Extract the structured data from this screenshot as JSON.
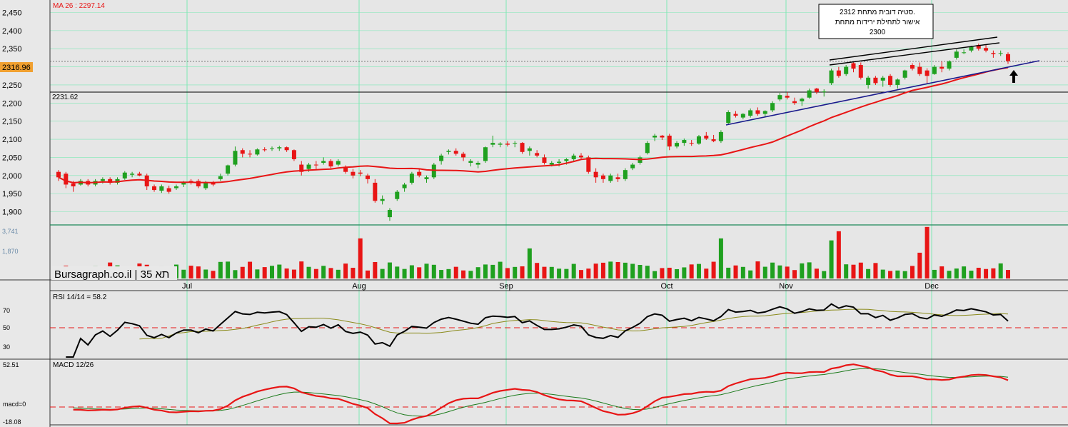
{
  "colors": {
    "background": "#e8e8e8",
    "grid": "#7de8b4",
    "up": "#1fa01f",
    "down": "#e81515",
    "ma": "#e81515",
    "rsi": "#000000",
    "rsi_signal": "#8a8a1a",
    "macd": "#e81515",
    "macd_signal": "#1a7a1a",
    "trendline": "#1a1a8c",
    "price_badge": "#f0a030"
  },
  "price_panel": {
    "ma_label": "MA 26 : 2297.14",
    "last_price": "2316.96",
    "level_label": "2231.62",
    "yticks": [
      "2,450",
      "2,400",
      "2,350",
      "2,300",
      "2,250",
      "2,200",
      "2,150",
      "2,100",
      "2,050",
      "2,000",
      "1,950",
      "1,900"
    ],
    "annotation_lines": [
      "סטיה דובית מתחת 2312.",
      "אישור לתחילת ירידות מתחת",
      "2300"
    ]
  },
  "volume_panel": {
    "yticks": [
      "3,741",
      "1,870"
    ],
    "watermark": "Bursagraph.co.il | תא 35"
  },
  "x_labels": [
    "Jul",
    "Aug",
    "Sep",
    "Oct",
    "Nov",
    "Dec"
  ],
  "rsi_panel": {
    "label": "RSI 14/14 = 58.2",
    "yticks": [
      "70",
      "50",
      "30"
    ]
  },
  "macd_panel": {
    "label": "MACD 12/26",
    "yticks": [
      "52.51",
      "macd=0",
      "-18.08"
    ]
  },
  "chart_data": {
    "type": "candlestick",
    "instrument": "תא 35",
    "months": [
      "Jul",
      "Aug",
      "Sep",
      "Oct",
      "Nov",
      "Dec"
    ],
    "price": {
      "ylim": [
        1875,
        2460
      ],
      "ohlc": [
        [
          2010,
          2015,
          1985,
          1995
        ],
        [
          2005,
          2010,
          1965,
          1975
        ],
        [
          1978,
          1985,
          1955,
          1970
        ],
        [
          1975,
          1990,
          1972,
          1985
        ],
        [
          1985,
          1990,
          1970,
          1975
        ],
        [
          1975,
          1990,
          1970,
          1985
        ],
        [
          1985,
          1995,
          1978,
          1990
        ],
        [
          1990,
          1995,
          1975,
          1980
        ],
        [
          1980,
          1995,
          1975,
          1990
        ],
        [
          1992,
          2012,
          1988,
          2008
        ],
        [
          2002,
          2010,
          1995,
          2005
        ],
        [
          2005,
          2010,
          1998,
          2000
        ],
        [
          2000,
          2005,
          1960,
          1970
        ],
        [
          1970,
          1975,
          1955,
          1960
        ],
        [
          1958,
          1975,
          1952,
          1970
        ],
        [
          1965,
          1972,
          1950,
          1955
        ],
        [
          1965,
          1975,
          1960,
          1970
        ],
        [
          1975,
          1985,
          1968,
          1980
        ],
        [
          1985,
          1990,
          1975,
          1980
        ],
        [
          1985,
          1990,
          1965,
          1970
        ],
        [
          1965,
          1985,
          1960,
          1982
        ],
        [
          1980,
          1985,
          1970,
          1975
        ],
        [
          1990,
          2005,
          1985,
          1998
        ],
        [
          2005,
          2030,
          2000,
          2028
        ],
        [
          2030,
          2080,
          2025,
          2068
        ],
        [
          2070,
          2075,
          2050,
          2060
        ],
        [
          2060,
          2070,
          2050,
          2058
        ],
        [
          2058,
          2075,
          2055,
          2072
        ],
        [
          2072,
          2078,
          2066,
          2070
        ],
        [
          2073,
          2080,
          2068,
          2075
        ],
        [
          2075,
          2082,
          2068,
          2078
        ],
        [
          2078,
          2080,
          2065,
          2070
        ],
        [
          2070,
          2072,
          2040,
          2045
        ],
        [
          2030,
          2040,
          2000,
          2010
        ],
        [
          2018,
          2035,
          2010,
          2030
        ],
        [
          2030,
          2040,
          2015,
          2028
        ],
        [
          2035,
          2050,
          2030,
          2040
        ],
        [
          2040,
          2045,
          2020,
          2025
        ],
        [
          2030,
          2045,
          2025,
          2040
        ],
        [
          2022,
          2028,
          2005,
          2010
        ],
        [
          2010,
          2018,
          1992,
          2000
        ],
        [
          2008,
          2015,
          1998,
          2005
        ],
        [
          2000,
          2005,
          1978,
          1990
        ],
        [
          1980,
          1990,
          1925,
          1930
        ],
        [
          1930,
          1945,
          1920,
          1935
        ],
        [
          1885,
          1910,
          1875,
          1905
        ],
        [
          1935,
          1960,
          1930,
          1955
        ],
        [
          1965,
          1980,
          1955,
          1975
        ],
        [
          1980,
          2010,
          1975,
          2005
        ],
        [
          2010,
          2020,
          1995,
          2000
        ],
        [
          1990,
          2000,
          1980,
          1995
        ],
        [
          1995,
          2035,
          1990,
          2030
        ],
        [
          2040,
          2060,
          2030,
          2055
        ],
        [
          2065,
          2072,
          2058,
          2068
        ],
        [
          2068,
          2075,
          2055,
          2060
        ],
        [
          2060,
          2065,
          2040,
          2050
        ],
        [
          2035,
          2045,
          2025,
          2040
        ],
        [
          2030,
          2040,
          2020,
          2035
        ],
        [
          2040,
          2080,
          2035,
          2078
        ],
        [
          2085,
          2110,
          2078,
          2090
        ],
        [
          2085,
          2092,
          2078,
          2088
        ],
        [
          2088,
          2095,
          2080,
          2085
        ],
        [
          2088,
          2095,
          2078,
          2090
        ],
        [
          2090,
          2092,
          2060,
          2065
        ],
        [
          2068,
          2080,
          2055,
          2075
        ],
        [
          2062,
          2070,
          2050,
          2055
        ],
        [
          2050,
          2058,
          2030,
          2035
        ],
        [
          2030,
          2040,
          2025,
          2035
        ],
        [
          2035,
          2045,
          2025,
          2038
        ],
        [
          2040,
          2048,
          2030,
          2045
        ],
        [
          2045,
          2060,
          2040,
          2055
        ],
        [
          2055,
          2062,
          2045,
          2050
        ],
        [
          2050,
          2055,
          2005,
          2010
        ],
        [
          2010,
          2020,
          1980,
          1995
        ],
        [
          2000,
          2005,
          1980,
          1990
        ],
        [
          1985,
          2005,
          1980,
          2000
        ],
        [
          1995,
          2005,
          1982,
          1990
        ],
        [
          1990,
          2020,
          1985,
          2015
        ],
        [
          2020,
          2035,
          2015,
          2030
        ],
        [
          2035,
          2055,
          2030,
          2050
        ],
        [
          2062,
          2095,
          2058,
          2090
        ],
        [
          2105,
          2115,
          2095,
          2110
        ],
        [
          2110,
          2112,
          2098,
          2105
        ],
        [
          2110,
          2115,
          2070,
          2080
        ],
        [
          2080,
          2095,
          2075,
          2090
        ],
        [
          2090,
          2102,
          2082,
          2098
        ],
        [
          2090,
          2098,
          2082,
          2088
        ],
        [
          2088,
          2112,
          2085,
          2108
        ],
        [
          2110,
          2120,
          2098,
          2102
        ],
        [
          2100,
          2112,
          2092,
          2095
        ],
        [
          2095,
          2125,
          2090,
          2120
        ],
        [
          2145,
          2180,
          2140,
          2175
        ],
        [
          2170,
          2178,
          2160,
          2165
        ],
        [
          2160,
          2172,
          2155,
          2170
        ],
        [
          2165,
          2185,
          2160,
          2180
        ],
        [
          2180,
          2188,
          2165,
          2170
        ],
        [
          2170,
          2180,
          2162,
          2178
        ],
        [
          2180,
          2205,
          2175,
          2200
        ],
        [
          2210,
          2228,
          2205,
          2222
        ],
        [
          2220,
          2230,
          2210,
          2215
        ],
        [
          2205,
          2215,
          2195,
          2200
        ],
        [
          2205,
          2215,
          2192,
          2212
        ],
        [
          2215,
          2240,
          2212,
          2235
        ],
        [
          2240,
          2242,
          2225,
          2230
        ],
        [
          2230,
          2238,
          2218,
          2232
        ],
        [
          2255,
          2295,
          2250,
          2290
        ],
        [
          2290,
          2300,
          2270,
          2275
        ],
        [
          2280,
          2305,
          2275,
          2300
        ],
        [
          2310,
          2312,
          2285,
          2295
        ],
        [
          2305,
          2312,
          2265,
          2270
        ],
        [
          2250,
          2275,
          2240,
          2270
        ],
        [
          2270,
          2275,
          2250,
          2255
        ],
        [
          2262,
          2275,
          2245,
          2270
        ],
        [
          2275,
          2280,
          2245,
          2250
        ],
        [
          2250,
          2268,
          2240,
          2265
        ],
        [
          2270,
          2292,
          2265,
          2290
        ],
        [
          2305,
          2310,
          2290,
          2295
        ],
        [
          2300,
          2312,
          2275,
          2280
        ],
        [
          2290,
          2296,
          2255,
          2275
        ],
        [
          2280,
          2305,
          2278,
          2300
        ],
        [
          2300,
          2315,
          2285,
          2295
        ],
        [
          2295,
          2318,
          2290,
          2315
        ],
        [
          2325,
          2348,
          2320,
          2342
        ],
        [
          2340,
          2348,
          2335,
          2340
        ],
        [
          2345,
          2358,
          2340,
          2355
        ],
        [
          2360,
          2364,
          2345,
          2350
        ],
        [
          2352,
          2360,
          2340,
          2345
        ],
        [
          2338,
          2345,
          2325,
          2335
        ],
        [
          2338,
          2345,
          2330,
          2338
        ],
        [
          2335,
          2340,
          2308,
          2316
        ]
      ]
    },
    "ma": {
      "name": "MA 26",
      "last": 2297.14
    },
    "volume": {
      "ylim": [
        0,
        3741
      ]
    },
    "rsi": {
      "name": "RSI 14/14",
      "last": 58.2,
      "levels": [
        70,
        50,
        30
      ]
    },
    "macd": {
      "name": "MACD 12/26",
      "ylim": [
        -18.08,
        52.51
      ]
    }
  }
}
